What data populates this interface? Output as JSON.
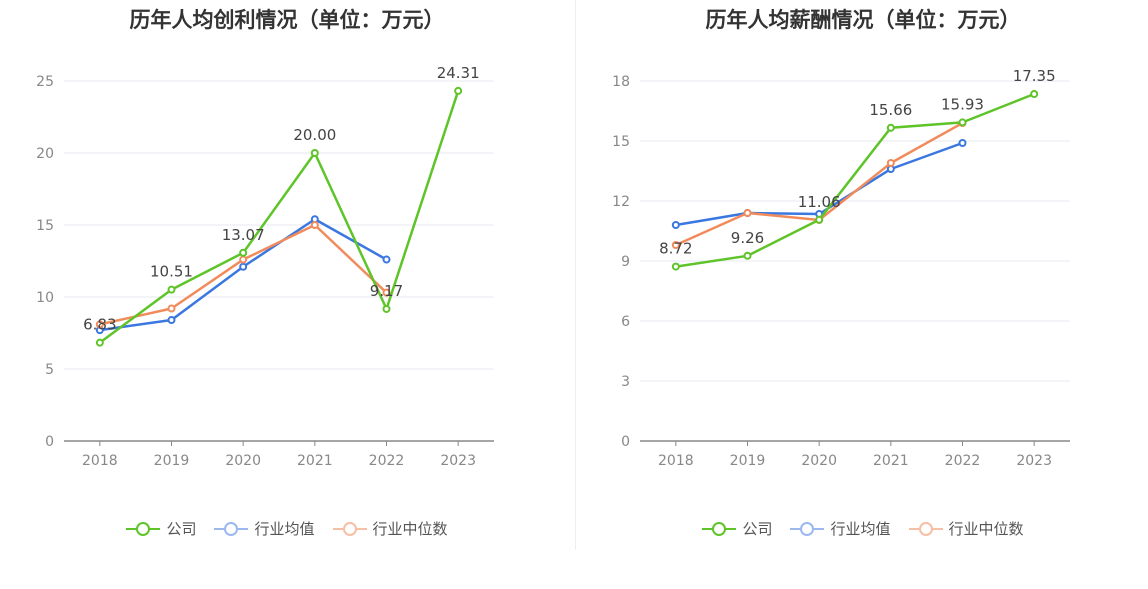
{
  "charts": [
    {
      "title": "历年人均创利情况（单位：万元）",
      "legend": [
        "公司",
        "行业均值",
        "行业中位数"
      ]
    },
    {
      "title": "历年人均薪酬情况（单位：万元）",
      "legend": [
        "公司",
        "行业均值",
        "行业中位数"
      ]
    }
  ],
  "colors": {
    "company": "#5ec429",
    "avg": "#3a77e0",
    "median": "#f28b5c"
  },
  "chart_data": [
    {
      "type": "line",
      "title": "历年人均创利情况（单位：万元）",
      "categories": [
        "2018",
        "2019",
        "2020",
        "2021",
        "2022",
        "2023"
      ],
      "ylim": [
        0,
        25
      ],
      "yticks": [
        0,
        5,
        10,
        15,
        20,
        25
      ],
      "grid": true,
      "legend_position": "bottom",
      "series": [
        {
          "name": "公司",
          "values": [
            6.83,
            10.51,
            13.07,
            20.0,
            9.17,
            24.31
          ],
          "labels": [
            "6.83",
            "10.51",
            "13.07",
            "20.00",
            "9.17",
            "24.31"
          ]
        },
        {
          "name": "行业均值",
          "values": [
            7.7,
            8.4,
            12.1,
            15.4,
            12.6,
            null
          ]
        },
        {
          "name": "行业中位数",
          "values": [
            8.1,
            9.2,
            12.6,
            15.0,
            10.3,
            null
          ]
        }
      ]
    },
    {
      "type": "line",
      "title": "历年人均薪酬情况（单位：万元）",
      "categories": [
        "2018",
        "2019",
        "2020",
        "2021",
        "2022",
        "2023"
      ],
      "ylim": [
        0,
        18
      ],
      "yticks": [
        0,
        3,
        6,
        9,
        12,
        15,
        18
      ],
      "grid": true,
      "legend_position": "bottom",
      "series": [
        {
          "name": "公司",
          "values": [
            8.72,
            9.26,
            11.06,
            15.66,
            15.93,
            17.35
          ],
          "labels": [
            "8.72",
            "9.26",
            "11.06",
            "15.66",
            "15.93",
            "17.35"
          ]
        },
        {
          "name": "行业均值",
          "values": [
            10.8,
            11.4,
            11.35,
            13.6,
            14.9,
            null
          ]
        },
        {
          "name": "行业中位数",
          "values": [
            9.8,
            11.4,
            11.05,
            13.9,
            15.9,
            null
          ]
        }
      ]
    }
  ]
}
